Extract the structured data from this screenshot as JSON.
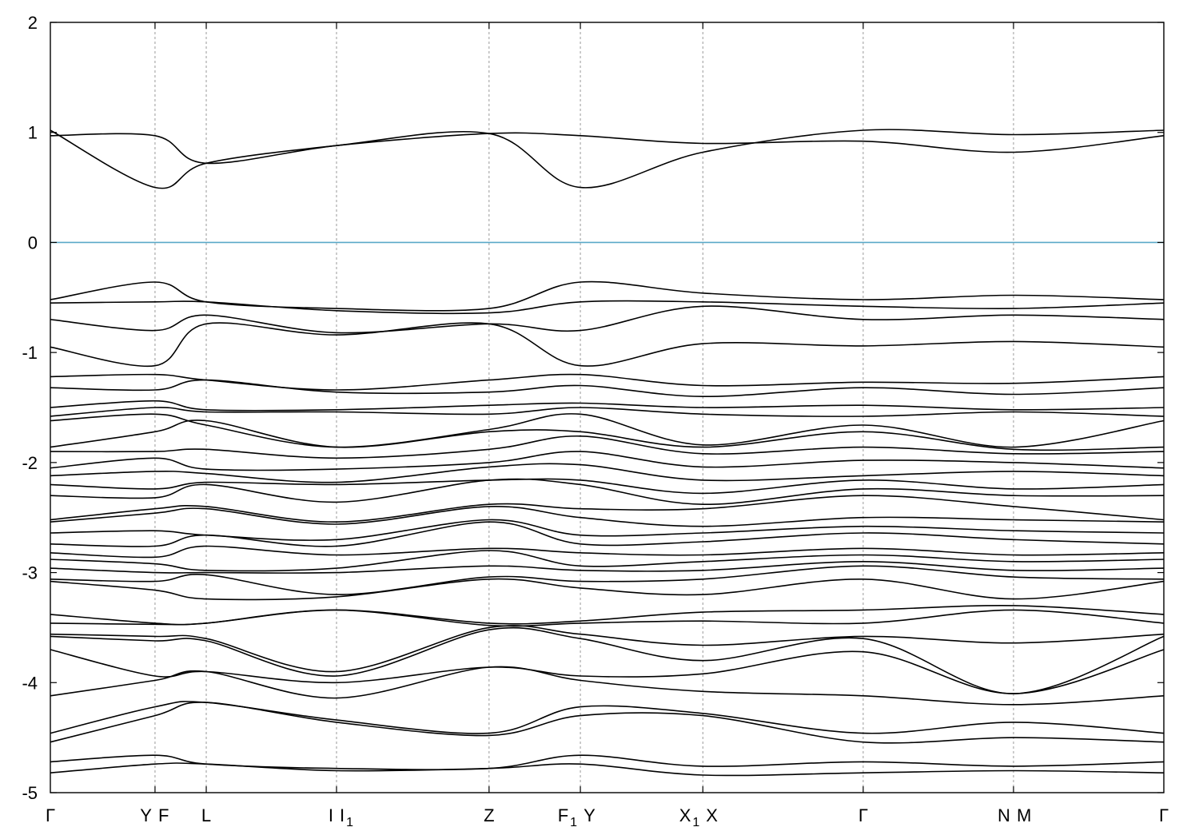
{
  "chart_data": {
    "type": "line",
    "title": "",
    "xlabel": "",
    "ylabel": "",
    "ylim": [
      -5,
      2
    ],
    "yticks": [
      2,
      1,
      0,
      -1,
      -2,
      -3,
      -4,
      -5
    ],
    "grid": "vertical dotted lines at high-symmetry points",
    "reference_line": {
      "y": 0,
      "color": "#5aa9c8"
    },
    "xlim": [
      0,
      1
    ],
    "kpoints": [
      {
        "pos": 0.0,
        "label": "Γ",
        "sub": ""
      },
      {
        "pos": 0.094,
        "label": "Y",
        "sub": ""
      },
      {
        "pos": 0.094,
        "label": "F",
        "sub": ""
      },
      {
        "pos": 0.14,
        "label": "L",
        "sub": ""
      },
      {
        "pos": 0.257,
        "label": "I",
        "sub": ""
      },
      {
        "pos": 0.257,
        "label": "I",
        "sub": "1"
      },
      {
        "pos": 0.394,
        "label": "Z",
        "sub": ""
      },
      {
        "pos": 0.476,
        "label": "F",
        "sub": "1"
      },
      {
        "pos": 0.476,
        "label": "Y",
        "sub": ""
      },
      {
        "pos": 0.586,
        "label": "X",
        "sub": "1"
      },
      {
        "pos": 0.586,
        "label": "X",
        "sub": ""
      },
      {
        "pos": 0.73,
        "label": "Γ",
        "sub": ""
      },
      {
        "pos": 0.865,
        "label": "N",
        "sub": ""
      },
      {
        "pos": 0.865,
        "label": "M",
        "sub": ""
      },
      {
        "pos": 1.0,
        "label": "Γ",
        "sub": ""
      }
    ],
    "series": [
      {
        "x": [
          0,
          0.094,
          0.14,
          0.257,
          0.394,
          0.476,
          0.586,
          0.73,
          0.865,
          1
        ],
        "y": [
          1.02,
          0.5,
          0.72,
          0.88,
          0.99,
          0.5,
          0.82,
          1.02,
          0.98,
          1.02
        ]
      },
      {
        "x": [
          0,
          0.094,
          0.14,
          0.257,
          0.394,
          0.476,
          0.586,
          0.73,
          0.865,
          1
        ],
        "y": [
          0.97,
          0.97,
          0.72,
          0.88,
          0.99,
          0.97,
          0.9,
          0.92,
          0.82,
          0.97
        ]
      },
      {
        "x": [
          0,
          0.094,
          0.14,
          0.257,
          0.394,
          0.476,
          0.586,
          0.73,
          0.865,
          1
        ],
        "y": [
          -0.52,
          -0.36,
          -0.54,
          -0.6,
          -0.6,
          -0.36,
          -0.46,
          -0.52,
          -0.48,
          -0.52
        ]
      },
      {
        "x": [
          0,
          0.094,
          0.14,
          0.257,
          0.394,
          0.476,
          0.586,
          0.73,
          0.865,
          1
        ],
        "y": [
          -0.55,
          -0.54,
          -0.54,
          -0.62,
          -0.64,
          -0.54,
          -0.54,
          -0.58,
          -0.6,
          -0.55
        ]
      },
      {
        "x": [
          0,
          0.094,
          0.14,
          0.257,
          0.394,
          0.476,
          0.586,
          0.73,
          0.865,
          1
        ],
        "y": [
          -0.7,
          -0.8,
          -0.66,
          -0.82,
          -0.74,
          -0.8,
          -0.58,
          -0.7,
          -0.66,
          -0.7
        ]
      },
      {
        "x": [
          0,
          0.094,
          0.14,
          0.257,
          0.394,
          0.476,
          0.586,
          0.73,
          0.865,
          1
        ],
        "y": [
          -0.95,
          -1.12,
          -0.74,
          -0.84,
          -0.74,
          -1.12,
          -0.92,
          -0.94,
          -0.9,
          -0.95
        ]
      },
      {
        "x": [
          0,
          0.094,
          0.14,
          0.257,
          0.394,
          0.476,
          0.586,
          0.73,
          0.865,
          1
        ],
        "y": [
          -1.22,
          -1.2,
          -1.25,
          -1.34,
          -1.25,
          -1.2,
          -1.3,
          -1.27,
          -1.28,
          -1.22
        ]
      },
      {
        "x": [
          0,
          0.094,
          0.14,
          0.257,
          0.394,
          0.476,
          0.586,
          0.73,
          0.865,
          1
        ],
        "y": [
          -1.32,
          -1.34,
          -1.25,
          -1.36,
          -1.36,
          -1.3,
          -1.4,
          -1.32,
          -1.38,
          -1.32
        ]
      },
      {
        "x": [
          0,
          0.094,
          0.14,
          0.257,
          0.394,
          0.476,
          0.586,
          0.73,
          0.865,
          1
        ],
        "y": [
          -1.5,
          -1.44,
          -1.52,
          -1.52,
          -1.48,
          -1.46,
          -1.5,
          -1.48,
          -1.52,
          -1.5
        ]
      },
      {
        "x": [
          0,
          0.094,
          0.14,
          0.257,
          0.394,
          0.476,
          0.586,
          0.73,
          0.865,
          1
        ],
        "y": [
          -1.58,
          -1.5,
          -1.54,
          -1.54,
          -1.56,
          -1.5,
          -1.56,
          -1.58,
          -1.54,
          -1.58
        ]
      },
      {
        "x": [
          0,
          0.094,
          0.14,
          0.257,
          0.394,
          0.476,
          0.586,
          0.73,
          0.865,
          1
        ],
        "y": [
          -1.62,
          -1.56,
          -1.66,
          -1.86,
          -1.7,
          -1.56,
          -1.84,
          -1.66,
          -1.86,
          -1.62
        ]
      },
      {
        "x": [
          0,
          0.094,
          0.14,
          0.257,
          0.394,
          0.476,
          0.586,
          0.73,
          0.865,
          1
        ],
        "y": [
          -1.86,
          -1.72,
          -1.62,
          -1.86,
          -1.72,
          -1.72,
          -1.86,
          -1.72,
          -1.88,
          -1.86
        ]
      },
      {
        "x": [
          0,
          0.094,
          0.14,
          0.257,
          0.394,
          0.476,
          0.586,
          0.73,
          0.865,
          1
        ],
        "y": [
          -1.9,
          -1.9,
          -1.88,
          -1.96,
          -1.88,
          -1.76,
          -1.92,
          -1.86,
          -1.92,
          -1.9
        ]
      },
      {
        "x": [
          0,
          0.094,
          0.14,
          0.257,
          0.394,
          0.476,
          0.586,
          0.73,
          0.865,
          1
        ],
        "y": [
          -2.05,
          -1.96,
          -2.06,
          -2.06,
          -2.0,
          -1.9,
          -2.04,
          -1.98,
          -2.0,
          -2.05
        ]
      },
      {
        "x": [
          0,
          0.094,
          0.14,
          0.257,
          0.394,
          0.476,
          0.586,
          0.73,
          0.865,
          1
        ],
        "y": [
          -2.12,
          -2.08,
          -2.1,
          -2.18,
          -2.04,
          -2.02,
          -2.16,
          -2.12,
          -2.08,
          -2.12
        ]
      },
      {
        "x": [
          0,
          0.094,
          0.14,
          0.257,
          0.394,
          0.476,
          0.586,
          0.73,
          0.865,
          1
        ],
        "y": [
          -2.2,
          -2.24,
          -2.18,
          -2.2,
          -2.16,
          -2.16,
          -2.28,
          -2.16,
          -2.24,
          -2.2
        ]
      },
      {
        "x": [
          0,
          0.094,
          0.14,
          0.257,
          0.394,
          0.476,
          0.586,
          0.73,
          0.865,
          1
        ],
        "y": [
          -2.3,
          -2.32,
          -2.2,
          -2.36,
          -2.16,
          -2.2,
          -2.38,
          -2.24,
          -2.3,
          -2.3
        ]
      },
      {
        "x": [
          0,
          0.094,
          0.14,
          0.257,
          0.394,
          0.476,
          0.586,
          0.73,
          0.865,
          1
        ],
        "y": [
          -2.52,
          -2.42,
          -2.4,
          -2.54,
          -2.38,
          -2.42,
          -2.42,
          -2.3,
          -2.4,
          -2.52
        ]
      },
      {
        "x": [
          0,
          0.094,
          0.14,
          0.257,
          0.394,
          0.476,
          0.586,
          0.73,
          0.865,
          1
        ],
        "y": [
          -2.54,
          -2.46,
          -2.42,
          -2.56,
          -2.4,
          -2.5,
          -2.58,
          -2.5,
          -2.52,
          -2.54
        ]
      },
      {
        "x": [
          0,
          0.094,
          0.14,
          0.257,
          0.394,
          0.476,
          0.586,
          0.73,
          0.865,
          1
        ],
        "y": [
          -2.64,
          -2.62,
          -2.66,
          -2.7,
          -2.52,
          -2.66,
          -2.64,
          -2.58,
          -2.62,
          -2.64
        ]
      },
      {
        "x": [
          0,
          0.094,
          0.14,
          0.257,
          0.394,
          0.476,
          0.586,
          0.73,
          0.865,
          1
        ],
        "y": [
          -2.74,
          -2.76,
          -2.66,
          -2.76,
          -2.54,
          -2.74,
          -2.72,
          -2.64,
          -2.7,
          -2.74
        ]
      },
      {
        "x": [
          0,
          0.094,
          0.14,
          0.257,
          0.394,
          0.476,
          0.586,
          0.73,
          0.865,
          1
        ],
        "y": [
          -2.82,
          -2.86,
          -2.76,
          -2.84,
          -2.78,
          -2.82,
          -2.84,
          -2.78,
          -2.84,
          -2.82
        ]
      },
      {
        "x": [
          0,
          0.094,
          0.14,
          0.257,
          0.394,
          0.476,
          0.586,
          0.73,
          0.865,
          1
        ],
        "y": [
          -2.88,
          -2.92,
          -2.98,
          -2.96,
          -2.8,
          -2.94,
          -2.9,
          -2.84,
          -2.9,
          -2.88
        ]
      },
      {
        "x": [
          0,
          0.094,
          0.14,
          0.257,
          0.394,
          0.476,
          0.586,
          0.73,
          0.865,
          1
        ],
        "y": [
          -2.96,
          -3.0,
          -3.0,
          -3.0,
          -2.94,
          -2.98,
          -2.98,
          -2.9,
          -2.98,
          -2.96
        ]
      },
      {
        "x": [
          0,
          0.094,
          0.14,
          0.257,
          0.394,
          0.476,
          0.586,
          0.73,
          0.865,
          1
        ],
        "y": [
          -3.06,
          -3.08,
          -3.02,
          -3.2,
          -3.04,
          -3.08,
          -3.06,
          -2.94,
          -3.04,
          -3.06
        ]
      },
      {
        "x": [
          0,
          0.094,
          0.14,
          0.257,
          0.394,
          0.476,
          0.586,
          0.73,
          0.865,
          1
        ],
        "y": [
          -3.08,
          -3.16,
          -3.24,
          -3.22,
          -3.06,
          -3.14,
          -3.2,
          -3.06,
          -3.24,
          -3.08
        ]
      },
      {
        "x": [
          0,
          0.094,
          0.14,
          0.257,
          0.394,
          0.476,
          0.586,
          0.73,
          0.865,
          1
        ],
        "y": [
          -3.38,
          -3.46,
          -3.46,
          -3.34,
          -3.46,
          -3.44,
          -3.36,
          -3.34,
          -3.3,
          -3.38
        ]
      },
      {
        "x": [
          0,
          0.094,
          0.14,
          0.257,
          0.394,
          0.476,
          0.586,
          0.73,
          0.865,
          1
        ],
        "y": [
          -3.46,
          -3.47,
          -3.46,
          -3.34,
          -3.48,
          -3.46,
          -3.44,
          -3.46,
          -3.34,
          -3.46
        ]
      },
      {
        "x": [
          0,
          0.094,
          0.14,
          0.257,
          0.394,
          0.476,
          0.586,
          0.73,
          0.865,
          1
        ],
        "y": [
          -3.56,
          -3.58,
          -3.6,
          -3.9,
          -3.5,
          -3.56,
          -3.66,
          -3.58,
          -3.64,
          -3.56
        ]
      },
      {
        "x": [
          0,
          0.094,
          0.14,
          0.257,
          0.394,
          0.476,
          0.586,
          0.73,
          0.865,
          1
        ],
        "y": [
          -3.58,
          -3.62,
          -3.62,
          -3.94,
          -3.52,
          -3.6,
          -3.8,
          -3.6,
          -4.1,
          -3.58
        ]
      },
      {
        "x": [
          0,
          0.094,
          0.14,
          0.257,
          0.394,
          0.476,
          0.586,
          0.73,
          0.865,
          1
        ],
        "y": [
          -3.7,
          -3.94,
          -3.9,
          -4.0,
          -3.86,
          -3.94,
          -3.92,
          -3.72,
          -4.1,
          -3.7
        ]
      },
      {
        "x": [
          0,
          0.094,
          0.14,
          0.257,
          0.394,
          0.476,
          0.586,
          0.73,
          0.865,
          1
        ],
        "y": [
          -4.12,
          -3.98,
          -3.9,
          -4.14,
          -3.86,
          -3.98,
          -4.08,
          -4.12,
          -4.2,
          -4.12
        ]
      },
      {
        "x": [
          0,
          0.094,
          0.14,
          0.257,
          0.394,
          0.476,
          0.586,
          0.73,
          0.865,
          1
        ],
        "y": [
          -4.46,
          -4.22,
          -4.18,
          -4.34,
          -4.46,
          -4.22,
          -4.28,
          -4.46,
          -4.36,
          -4.46
        ]
      },
      {
        "x": [
          0,
          0.094,
          0.14,
          0.257,
          0.394,
          0.476,
          0.586,
          0.73,
          0.865,
          1
        ],
        "y": [
          -4.54,
          -4.3,
          -4.18,
          -4.36,
          -4.48,
          -4.3,
          -4.3,
          -4.54,
          -4.5,
          -4.54
        ]
      },
      {
        "x": [
          0,
          0.094,
          0.14,
          0.257,
          0.394,
          0.476,
          0.586,
          0.73,
          0.865,
          1
        ],
        "y": [
          -4.72,
          -4.66,
          -4.74,
          -4.78,
          -4.78,
          -4.66,
          -4.76,
          -4.72,
          -4.76,
          -4.72
        ]
      },
      {
        "x": [
          0,
          0.094,
          0.14,
          0.257,
          0.394,
          0.476,
          0.586,
          0.73,
          0.865,
          1
        ],
        "y": [
          -4.82,
          -4.74,
          -4.74,
          -4.8,
          -4.78,
          -4.74,
          -4.84,
          -4.82,
          -4.8,
          -4.82
        ]
      }
    ]
  }
}
